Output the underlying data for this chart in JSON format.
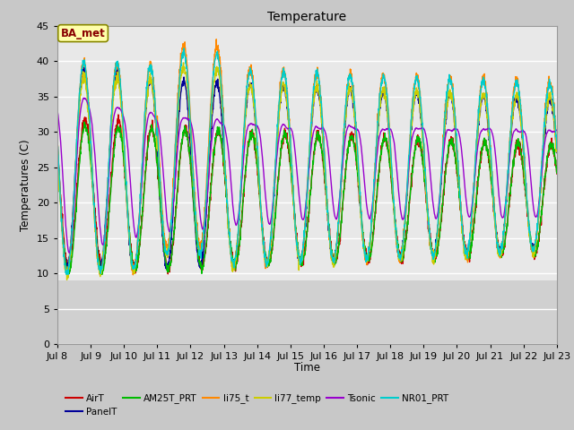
{
  "title": "Temperature",
  "xlabel": "Time",
  "ylabel": "Temperatures (C)",
  "ylim": [
    0,
    45
  ],
  "yticks": [
    0,
    5,
    10,
    15,
    20,
    25,
    30,
    35,
    40,
    45
  ],
  "annotation": "BA_met",
  "plot_bg_upper": "#e8e8e8",
  "plot_bg_lower": "#d0d0d0",
  "series": {
    "AirT": {
      "color": "#cc0000",
      "lw": 1.0
    },
    "PanelT": {
      "color": "#000099",
      "lw": 1.0
    },
    "AM25T_PRT": {
      "color": "#00bb00",
      "lw": 1.0
    },
    "li75_t": {
      "color": "#ff8800",
      "lw": 1.0
    },
    "li77_temp": {
      "color": "#cccc00",
      "lw": 1.0
    },
    "Tsonic": {
      "color": "#9900cc",
      "lw": 1.0
    },
    "NR01_PRT": {
      "color": "#00cccc",
      "lw": 1.0
    }
  },
  "xtick_labels": [
    "Jul 8",
    "Jul 9",
    "Jul 10",
    "Jul 11",
    "Jul 12",
    "Jul 13",
    "Jul 14",
    "Jul 15",
    "Jul 16",
    "Jul 17",
    "Jul 18",
    "Jul 19",
    "Jul 20",
    "Jul 21",
    "Jul 22",
    "Jul 23"
  ],
  "n_points": 2160
}
